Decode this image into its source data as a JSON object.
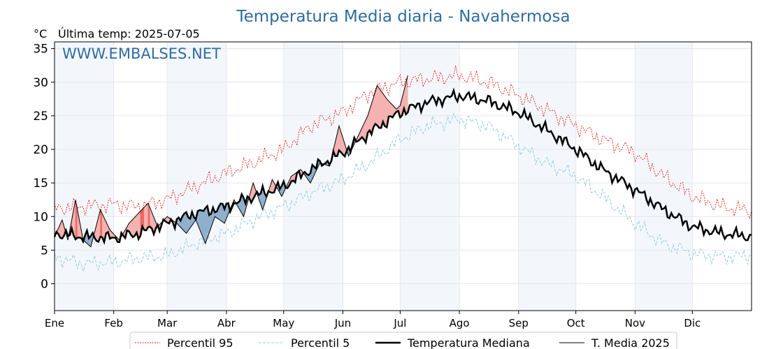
{
  "chart_data": {
    "type": "line",
    "title": "Temperatura Media diaria - Navahermosa",
    "unit_label": "°C",
    "last_temp_label": "Última temp: 2025-07-05",
    "watermark": "WWW.EMBALSES.NET",
    "ylim": [
      -4,
      36
    ],
    "yticks": [
      0,
      5,
      10,
      15,
      20,
      25,
      30,
      35
    ],
    "xlim_days": [
      1,
      366
    ],
    "months": [
      {
        "label": "Ene",
        "day": 1
      },
      {
        "label": "Feb",
        "day": 32
      },
      {
        "label": "Mar",
        "day": 60
      },
      {
        "label": "Abr",
        "day": 91
      },
      {
        "label": "May",
        "day": 121
      },
      {
        "label": "Jun",
        "day": 152
      },
      {
        "label": "Jul",
        "day": 182
      },
      {
        "label": "Ago",
        "day": 213
      },
      {
        "label": "Sep",
        "day": 244
      },
      {
        "label": "Oct",
        "day": 274
      },
      {
        "label": "Nov",
        "day": 305
      },
      {
        "label": "Dic",
        "day": 335
      }
    ],
    "grid": true,
    "legend_position": "bottom",
    "series": [
      {
        "name": "Percentil 95",
        "color": "#e8241c",
        "style": "dotted",
        "points": [
          [
            1,
            11.2
          ],
          [
            15,
            11.5
          ],
          [
            32,
            11.8
          ],
          [
            45,
            11.5
          ],
          [
            60,
            12.5
          ],
          [
            75,
            14.5
          ],
          [
            91,
            16.5
          ],
          [
            105,
            18
          ],
          [
            121,
            20
          ],
          [
            135,
            23.5
          ],
          [
            152,
            25.5
          ],
          [
            166,
            28.5
          ],
          [
            182,
            30
          ],
          [
            196,
            30.5
          ],
          [
            213,
            31
          ],
          [
            228,
            30
          ],
          [
            244,
            28
          ],
          [
            258,
            26
          ],
          [
            274,
            23.5
          ],
          [
            288,
            21.5
          ],
          [
            305,
            19.5
          ],
          [
            320,
            16
          ],
          [
            335,
            13
          ],
          [
            350,
            11.5
          ],
          [
            366,
            10.8
          ]
        ]
      },
      {
        "name": "Percentil 5",
        "color": "#9ecfe0",
        "style": "dashed",
        "points": [
          [
            1,
            4
          ],
          [
            15,
            3
          ],
          [
            32,
            3.2
          ],
          [
            45,
            3.8
          ],
          [
            60,
            4.2
          ],
          [
            75,
            6
          ],
          [
            91,
            7.5
          ],
          [
            105,
            9.5
          ],
          [
            121,
            11.5
          ],
          [
            135,
            13.5
          ],
          [
            152,
            15.5
          ],
          [
            166,
            18
          ],
          [
            182,
            21.5
          ],
          [
            196,
            23.5
          ],
          [
            213,
            24.5
          ],
          [
            228,
            23.5
          ],
          [
            244,
            20.5
          ],
          [
            258,
            18
          ],
          [
            274,
            16
          ],
          [
            288,
            13
          ],
          [
            305,
            9
          ],
          [
            320,
            6
          ],
          [
            335,
            4.5
          ],
          [
            350,
            4
          ],
          [
            366,
            4.2
          ]
        ]
      },
      {
        "name": "Temperatura Mediana",
        "color": "#000000",
        "style": "bold",
        "points": [
          [
            1,
            7.5
          ],
          [
            15,
            7
          ],
          [
            32,
            6.8
          ],
          [
            45,
            7.5
          ],
          [
            60,
            9
          ],
          [
            75,
            10.5
          ],
          [
            91,
            11.5
          ],
          [
            105,
            13
          ],
          [
            121,
            14.5
          ],
          [
            135,
            17
          ],
          [
            152,
            19.5
          ],
          [
            166,
            22.5
          ],
          [
            182,
            25.5
          ],
          [
            196,
            27
          ],
          [
            213,
            28
          ],
          [
            228,
            27.2
          ],
          [
            244,
            25.5
          ],
          [
            258,
            23
          ],
          [
            274,
            20
          ],
          [
            288,
            17
          ],
          [
            305,
            14
          ],
          [
            320,
            11
          ],
          [
            335,
            8.5
          ],
          [
            350,
            7.5
          ],
          [
            366,
            7
          ]
        ]
      },
      {
        "name": "T. Media 2025",
        "color": "#000000",
        "style": "thin",
        "points": [
          [
            1,
            7
          ],
          [
            5,
            9.5
          ],
          [
            8,
            6.5
          ],
          [
            12,
            12.5
          ],
          [
            16,
            6.5
          ],
          [
            20,
            5.5
          ],
          [
            25,
            11
          ],
          [
            30,
            8
          ],
          [
            35,
            6.5
          ],
          [
            40,
            9
          ],
          [
            45,
            10.5
          ],
          [
            50,
            12
          ],
          [
            55,
            8.5
          ],
          [
            60,
            10
          ],
          [
            65,
            9
          ],
          [
            70,
            7.5
          ],
          [
            75,
            9.5
          ],
          [
            80,
            6
          ],
          [
            85,
            10
          ],
          [
            90,
            9
          ],
          [
            95,
            12.5
          ],
          [
            100,
            10
          ],
          [
            105,
            15
          ],
          [
            110,
            11
          ],
          [
            115,
            15.5
          ],
          [
            120,
            13
          ],
          [
            125,
            16
          ],
          [
            130,
            17
          ],
          [
            135,
            15
          ],
          [
            140,
            18
          ],
          [
            145,
            17.5
          ],
          [
            150,
            23.5
          ],
          [
            155,
            19
          ],
          [
            160,
            22
          ],
          [
            165,
            25
          ],
          [
            170,
            29.5
          ],
          [
            175,
            27.5
          ],
          [
            180,
            26
          ],
          [
            182,
            26.5
          ],
          [
            186,
            31
          ]
        ]
      }
    ]
  }
}
